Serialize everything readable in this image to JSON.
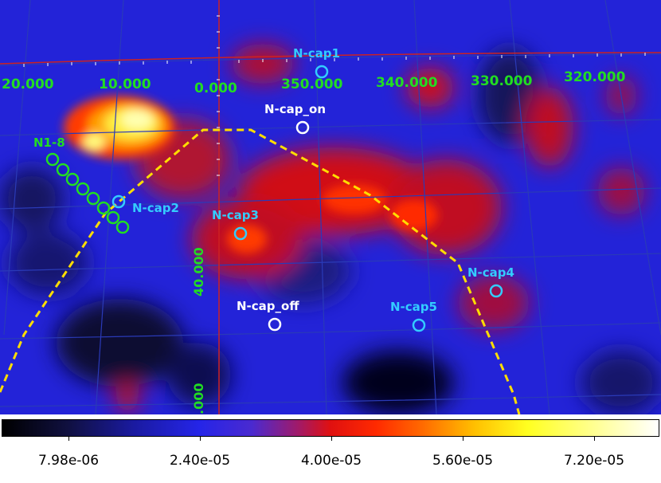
{
  "longitude_labels": [
    "20.000",
    "10.000",
    "0.000",
    "350.000",
    "340.000",
    "330.000",
    "320.000"
  ],
  "latitude_labels": [
    "40.000",
    ".000"
  ],
  "sources": [
    {
      "label": "N-cap1",
      "color": "#33ccff"
    },
    {
      "label": "N-cap_on",
      "color": "#ffffff"
    },
    {
      "label": "N1-8",
      "color": "#22dd22"
    },
    {
      "label": "N-cap2",
      "color": "#33ccff"
    },
    {
      "label": "N-cap3",
      "color": "#33ccff"
    },
    {
      "label": "N-cap4",
      "color": "#33ccff"
    },
    {
      "label": "N-cap_off",
      "color": "#ffffff"
    },
    {
      "label": "N-cap5",
      "color": "#33ccff"
    }
  ],
  "colorbar": {
    "tick_labels": [
      "7.98e-06",
      "2.40e-05",
      "4.00e-05",
      "5.60e-05",
      "7.20e-05"
    ],
    "colormap": "heat"
  },
  "colors": {
    "grid": "#2a3ab8",
    "galactic_plane": "#cc2222",
    "boundary": "#ffdd00",
    "n_region_circles": "#22dd22",
    "cap_circles": "#33ccff",
    "on_off_circles": "#ffffff"
  }
}
